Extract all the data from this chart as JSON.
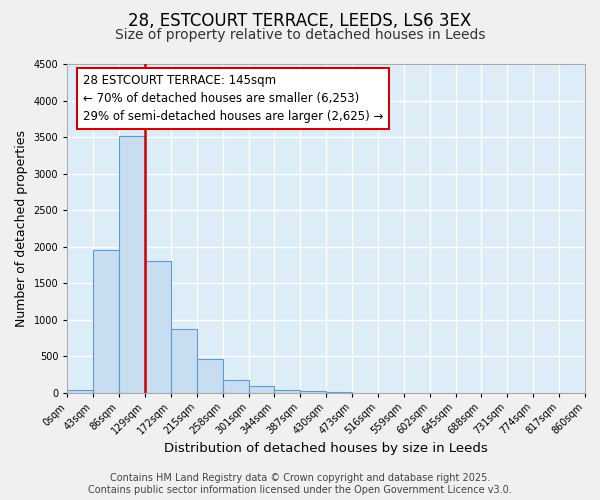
{
  "title": "28, ESTCOURT TERRACE, LEEDS, LS6 3EX",
  "subtitle": "Size of property relative to detached houses in Leeds",
  "xlabel": "Distribution of detached houses by size in Leeds",
  "ylabel": "Number of detached properties",
  "bin_labels": [
    "0sqm",
    "43sqm",
    "86sqm",
    "129sqm",
    "172sqm",
    "215sqm",
    "258sqm",
    "301sqm",
    "344sqm",
    "387sqm",
    "430sqm",
    "473sqm",
    "516sqm",
    "559sqm",
    "602sqm",
    "645sqm",
    "688sqm",
    "731sqm",
    "774sqm",
    "817sqm",
    "860sqm"
  ],
  "bar_heights": [
    30,
    1950,
    3520,
    1800,
    870,
    460,
    170,
    95,
    30,
    15,
    10,
    0,
    0,
    0,
    0,
    0,
    0,
    0,
    0,
    0
  ],
  "bar_color": "#c9ddf0",
  "bar_edge_color": "#5b9bd5",
  "vline_x": 3,
  "vline_color": "#cc0000",
  "annotation_text": "28 ESTCOURT TERRACE: 145sqm\n← 70% of detached houses are smaller (6,253)\n29% of semi-detached houses are larger (2,625) →",
  "annotation_box_color": "#ffffff",
  "annotation_box_edge": "#cc0000",
  "ylim": [
    0,
    4500
  ],
  "yticks": [
    0,
    500,
    1000,
    1500,
    2000,
    2500,
    3000,
    3500,
    4000,
    4500
  ],
  "bg_color": "#ddedf8",
  "grid_color": "#ffffff",
  "footer_line1": "Contains HM Land Registry data © Crown copyright and database right 2025.",
  "footer_line2": "Contains public sector information licensed under the Open Government Licence v3.0.",
  "title_fontsize": 12,
  "subtitle_fontsize": 10,
  "xlabel_fontsize": 9.5,
  "ylabel_fontsize": 9,
  "annotation_fontsize": 8.5,
  "footer_fontsize": 7
}
